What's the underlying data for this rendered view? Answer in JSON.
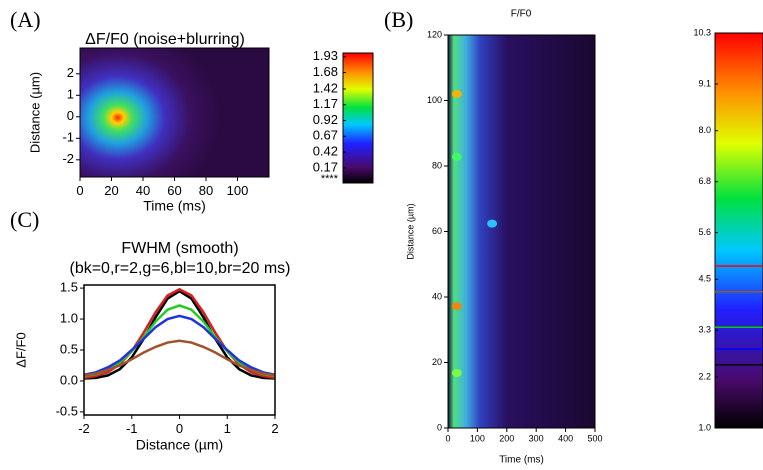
{
  "chart_data": [
    {
      "type": "heatmap",
      "panel_label": "(A)",
      "title": "ΔF/F0 (noise+blurring)",
      "xlabel": "Time (ms)",
      "ylabel": "Distance (µm)",
      "xlim": [
        0,
        120
      ],
      "xticks": [
        0,
        20,
        40,
        60,
        80,
        100
      ],
      "ylim": [
        -2.8,
        3.2
      ],
      "yticks": [
        -2,
        -1,
        0,
        1,
        2
      ],
      "colorbar": {
        "clim": [
          -0.07,
          1.99
        ],
        "ticks": [
          0.17,
          0.42,
          0.67,
          0.92,
          1.17,
          1.42,
          1.68,
          1.93
        ],
        "bottom_label": "****"
      }
    },
    {
      "type": "heatmap",
      "panel_label": "(B)",
      "title": "F/F0",
      "xlabel": "Time (ms)",
      "ylabel": "Distance (µm)",
      "xlim": [
        0,
        500
      ],
      "xticks": [
        0,
        100,
        200,
        300,
        400,
        500
      ],
      "ylim": [
        0,
        120
      ],
      "yticks": [
        0,
        20,
        40,
        60,
        80,
        100,
        120
      ],
      "colorbar": {
        "clim": [
          1.0,
          10.3
        ],
        "ticks": [
          {
            "value": 1.0,
            "label": "1.0"
          },
          2.2,
          3.3,
          4.5,
          5.6,
          6.8,
          {
            "value": 8.0,
            "label": "8.0"
          },
          9.1,
          10.3
        ]
      }
    },
    {
      "type": "line",
      "panel_label": "(C)",
      "title": "FWHM (smooth)",
      "subtitle": "(bk=0,r=2,g=6,bl=10,br=20 ms)",
      "xlabel": "Distance (µm)",
      "ylabel": "ΔF/F0",
      "xlim": [
        -2,
        2
      ],
      "xticks": [
        -2,
        -1,
        0,
        1,
        2
      ],
      "ylim": [
        -0.55,
        1.55
      ],
      "yticks": [
        -0.5,
        {
          "value": 0.0,
          "label": "0.0"
        },
        0.5,
        {
          "value": 1.0,
          "label": "1.0"
        },
        1.5
      ],
      "x": [
        -2,
        -1.75,
        -1.5,
        -1.25,
        -1,
        -0.75,
        -0.5,
        -0.25,
        0,
        0.25,
        0.5,
        0.75,
        1,
        1.25,
        1.5,
        1.75,
        2
      ],
      "series": [
        {
          "color": "#000000",
          "values": [
            0.04,
            0.05,
            0.09,
            0.19,
            0.38,
            0.68,
            1.03,
            1.33,
            1.45,
            1.33,
            1.03,
            0.68,
            0.38,
            0.19,
            0.09,
            0.05,
            0.04
          ]
        },
        {
          "color": "#d42020",
          "values": [
            0.05,
            0.08,
            0.14,
            0.27,
            0.48,
            0.78,
            1.11,
            1.38,
            1.48,
            1.38,
            1.11,
            0.78,
            0.48,
            0.27,
            0.14,
            0.08,
            0.05
          ]
        },
        {
          "color": "#22cc22",
          "values": [
            0.08,
            0.11,
            0.18,
            0.3,
            0.48,
            0.71,
            0.96,
            1.15,
            1.22,
            1.15,
            0.96,
            0.71,
            0.48,
            0.3,
            0.18,
            0.11,
            0.08
          ]
        },
        {
          "color": "#2233dd",
          "values": [
            0.1,
            0.14,
            0.22,
            0.33,
            0.5,
            0.68,
            0.87,
            1.0,
            1.05,
            1.0,
            0.87,
            0.68,
            0.5,
            0.33,
            0.22,
            0.14,
            0.1
          ]
        },
        {
          "color": "#a0522d",
          "values": [
            0.09,
            0.12,
            0.18,
            0.25,
            0.35,
            0.46,
            0.55,
            0.62,
            0.65,
            0.62,
            0.55,
            0.46,
            0.35,
            0.25,
            0.18,
            0.12,
            0.09
          ]
        }
      ]
    }
  ]
}
